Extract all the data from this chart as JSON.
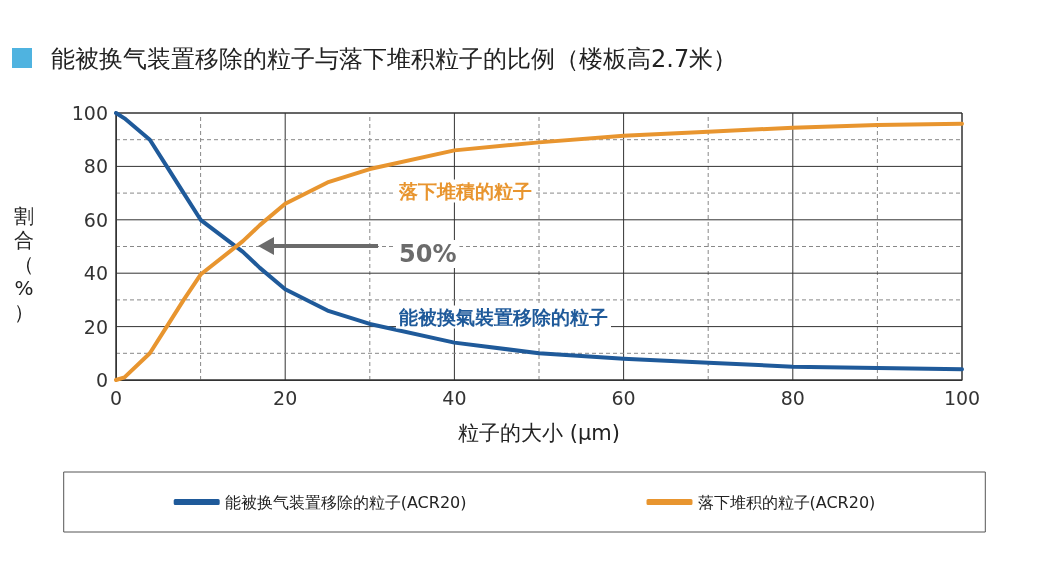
{
  "chart_data": {
    "type": "line",
    "title": "能被换气装置移除的粒子与落下堆积粒子的比例（楼板高2.7米）",
    "xlabel": "粒子的大小 (μm)",
    "ylabel": "割合（%）",
    "series": [
      {
        "name": "能被换气装置移除的粒子(ACR20)",
        "color": "#1f5a9a",
        "x": [
          0,
          1,
          4,
          6,
          8,
          10,
          15,
          17,
          20,
          25,
          30,
          40,
          50,
          60,
          70,
          80,
          90,
          100
        ],
        "values": [
          100,
          98,
          90,
          80,
          70,
          60,
          48,
          42,
          34,
          26,
          21,
          14,
          10,
          8,
          6.5,
          5,
          4.5,
          4
        ]
      },
      {
        "name": "落下堆积的粒子(ACR20)",
        "color": "#e8952f",
        "x": [
          0,
          1,
          4,
          6,
          8,
          10,
          15,
          17,
          20,
          25,
          30,
          40,
          50,
          60,
          70,
          80,
          90,
          100
        ],
        "values": [
          0,
          1,
          10,
          20,
          30,
          39.5,
          52,
          58,
          66,
          74,
          79,
          86,
          89,
          91.5,
          93,
          94.5,
          95.5,
          96
        ]
      }
    ],
    "annotations": [
      "能被換氣裝置移除的粒子",
      "落下堆積的粒子",
      "50%"
    ],
    "xlim": [
      0,
      100
    ],
    "ylim": [
      0,
      100
    ],
    "xticks": [
      0,
      {
        "value": 10,
        "label": null
      },
      20,
      {
        "value": 30,
        "label": null
      },
      40,
      {
        "value": 50,
        "label": null
      },
      60,
      {
        "value": 70,
        "label": null
      },
      80,
      {
        "value": 90,
        "label": null
      },
      100
    ],
    "yticks": [
      0,
      {
        "value": 10,
        "label": null
      },
      20,
      {
        "value": 30,
        "label": null
      },
      40,
      {
        "value": 50,
        "label": null
      },
      60,
      {
        "value": 70,
        "label": null
      },
      80,
      {
        "value": 90,
        "label": null
      },
      100
    ],
    "grid": true,
    "legend": "bottom",
    "marker": "none",
    "line_style": "solid"
  }
}
